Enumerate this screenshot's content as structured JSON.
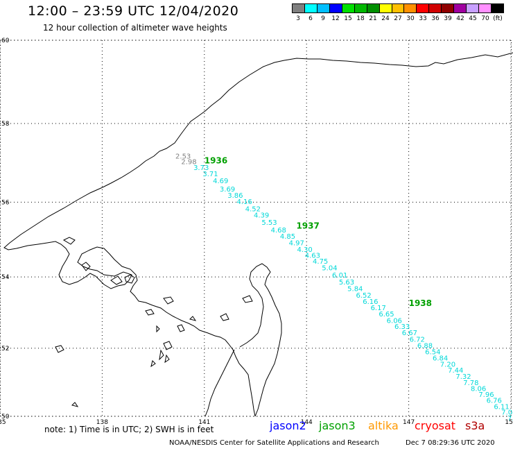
{
  "header": {
    "title": "12:00 – 23:59 UTC 12/04/2020",
    "subtitle": "12 hour collection of altimeter wave heights"
  },
  "colorbar": {
    "colors": [
      "#7f7f7f",
      "#00ffff",
      "#00bfff",
      "#0000ff",
      "#00e000",
      "#00b800",
      "#008f00",
      "#ffff00",
      "#ffc000",
      "#ff9000",
      "#ff0000",
      "#d00000",
      "#900000",
      "#a000a0",
      "#c8a0ff",
      "#ff90ff",
      "#000000"
    ],
    "labels": [
      "3",
      "6",
      "9",
      "12",
      "15",
      "18",
      "21",
      "24",
      "27",
      "30",
      "33",
      "36",
      "39",
      "42",
      "45",
      "70",
      "(ft)"
    ]
  },
  "axes": {
    "lon_ticks": [
      "135",
      "138",
      "141",
      "144",
      "147",
      "150"
    ],
    "lat_ticks": [
      "50",
      "52",
      "54",
      "56",
      "58",
      "60"
    ]
  },
  "track": {
    "color": "#00d8d8",
    "points": [
      {
        "lon": 140.15,
        "lat": 57.12,
        "v": "2.53",
        "gray": true
      },
      {
        "lon": 140.32,
        "lat": 56.98,
        "v": "2.98",
        "gray": true
      },
      {
        "lon": 140.68,
        "lat": 56.83,
        "v": "3.73"
      },
      {
        "lon": 140.95,
        "lat": 56.67,
        "v": "3.71"
      },
      {
        "lon": 141.25,
        "lat": 56.49,
        "v": "4.69"
      },
      {
        "lon": 141.45,
        "lat": 56.28,
        "v": "3.69"
      },
      {
        "lon": 141.68,
        "lat": 56.12,
        "v": "3.86"
      },
      {
        "lon": 141.95,
        "lat": 55.95,
        "v": "4.16"
      },
      {
        "lon": 142.2,
        "lat": 55.76,
        "v": "4.52"
      },
      {
        "lon": 142.45,
        "lat": 55.6,
        "v": "4.39"
      },
      {
        "lon": 142.68,
        "lat": 55.41,
        "v": "5.53"
      },
      {
        "lon": 142.95,
        "lat": 55.2,
        "v": "4.68"
      },
      {
        "lon": 143.22,
        "lat": 55.04,
        "v": "4.85"
      },
      {
        "lon": 143.48,
        "lat": 54.86,
        "v": "4.97"
      },
      {
        "lon": 143.72,
        "lat": 54.68,
        "v": "4.30"
      },
      {
        "lon": 143.95,
        "lat": 54.52,
        "v": "4.63"
      },
      {
        "lon": 144.18,
        "lat": 54.36,
        "v": "4.75"
      },
      {
        "lon": 144.45,
        "lat": 54.18,
        "v": "5.04"
      },
      {
        "lon": 144.75,
        "lat": 53.98,
        "v": "6.01"
      },
      {
        "lon": 144.95,
        "lat": 53.79,
        "v": "5.63"
      },
      {
        "lon": 145.2,
        "lat": 53.61,
        "v": "5.84"
      },
      {
        "lon": 145.45,
        "lat": 53.43,
        "v": "6.52"
      },
      {
        "lon": 145.65,
        "lat": 53.25,
        "v": "6.16"
      },
      {
        "lon": 145.88,
        "lat": 53.08,
        "v": "6.17"
      },
      {
        "lon": 146.12,
        "lat": 52.9,
        "v": "6.65"
      },
      {
        "lon": 146.35,
        "lat": 52.72,
        "v": "6.06"
      },
      {
        "lon": 146.58,
        "lat": 52.55,
        "v": "6.33"
      },
      {
        "lon": 146.8,
        "lat": 52.37,
        "v": "6.67"
      },
      {
        "lon": 147.02,
        "lat": 52.19,
        "v": "6.72"
      },
      {
        "lon": 147.25,
        "lat": 52.01,
        "v": "6.88"
      },
      {
        "lon": 147.48,
        "lat": 51.83,
        "v": "6.54"
      },
      {
        "lon": 147.7,
        "lat": 51.65,
        "v": "6.84"
      },
      {
        "lon": 147.92,
        "lat": 51.47,
        "v": "7.20"
      },
      {
        "lon": 148.15,
        "lat": 51.29,
        "v": "7.44"
      },
      {
        "lon": 148.38,
        "lat": 51.11,
        "v": "7.32"
      },
      {
        "lon": 148.6,
        "lat": 50.93,
        "v": "7.78"
      },
      {
        "lon": 148.82,
        "lat": 50.75,
        "v": "8.06"
      },
      {
        "lon": 149.05,
        "lat": 50.58,
        "v": "7.96"
      },
      {
        "lon": 149.28,
        "lat": 50.4,
        "v": "6.76"
      },
      {
        "lon": 149.5,
        "lat": 50.22,
        "v": "6.11"
      },
      {
        "lon": 149.72,
        "lat": 50.05,
        "v": "7.04"
      },
      {
        "lon": 149.9,
        "lat": 49.88,
        "v": "7.07"
      },
      {
        "lon": 150.05,
        "lat": 49.72,
        "v": "6.1"
      },
      {
        "lon": 150.15,
        "lat": 49.58,
        "v": "6"
      }
    ],
    "time_labels": [
      {
        "lon": 141.0,
        "lat": 57.0,
        "text": "1936"
      },
      {
        "lon": 143.7,
        "lat": 55.3,
        "text": "1937"
      },
      {
        "lon": 147.0,
        "lat": 53.2,
        "text": "1938"
      }
    ]
  },
  "note": "note:  1) Time is in UTC;  2) SWH is in feet",
  "satellites": [
    {
      "name": "jason2",
      "color": "#0000ff"
    },
    {
      "name": "jason3",
      "color": "#00a000"
    },
    {
      "name": "altika",
      "color": "#ff9900"
    },
    {
      "name": "cryosat",
      "color": "#ff0000"
    },
    {
      "name": "s3a",
      "color": "#b00000"
    }
  ],
  "footer": {
    "credit": "NOAA/NESDIS Center for Satellite Applications and Research",
    "timestamp": "Dec  7 08:29:36 UTC 2020"
  }
}
